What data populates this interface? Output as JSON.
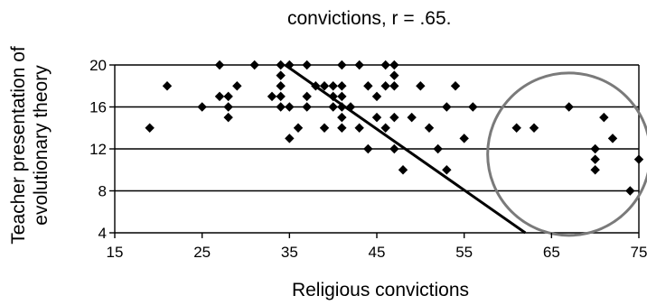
{
  "caption_text": "convictions, r = .65.",
  "chart_data": {
    "type": "scatter",
    "title": "",
    "xlabel": "Religious convictions",
    "ylabel": "Teacher presentation of evolutionary theory",
    "xlim": [
      15,
      75
    ],
    "ylim": [
      4,
      20
    ],
    "x_ticks": [
      "15",
      "25",
      "35",
      "45",
      "55",
      "65",
      "75"
    ],
    "y_ticks": [
      "4",
      "8",
      "12",
      "16",
      "20"
    ],
    "grid": "horizontal",
    "annotations": {
      "trend_line": {
        "x": [
          34.5,
          62
        ],
        "y": [
          20,
          4
        ]
      },
      "circle": {
        "cx": 67,
        "cy": 11.5
      }
    },
    "points": [
      [
        19,
        14
      ],
      [
        21,
        18
      ],
      [
        25,
        16
      ],
      [
        27,
        20
      ],
      [
        27,
        17
      ],
      [
        28,
        17
      ],
      [
        28,
        16
      ],
      [
        28,
        15
      ],
      [
        29,
        18
      ],
      [
        31,
        20
      ],
      [
        33,
        17
      ],
      [
        34,
        20
      ],
      [
        34,
        19
      ],
      [
        34,
        18
      ],
      [
        34,
        17
      ],
      [
        34,
        16
      ],
      [
        35,
        20
      ],
      [
        35,
        16
      ],
      [
        35,
        13
      ],
      [
        36,
        14
      ],
      [
        37,
        20
      ],
      [
        37,
        17
      ],
      [
        37,
        16
      ],
      [
        38,
        18
      ],
      [
        39,
        14
      ],
      [
        39,
        18
      ],
      [
        40,
        18
      ],
      [
        40,
        17
      ],
      [
        40,
        16
      ],
      [
        41,
        20
      ],
      [
        41,
        18
      ],
      [
        41,
        17
      ],
      [
        41,
        16
      ],
      [
        41,
        15
      ],
      [
        41,
        14
      ],
      [
        42,
        16
      ],
      [
        43,
        14
      ],
      [
        43,
        20
      ],
      [
        44,
        18
      ],
      [
        44,
        12
      ],
      [
        45,
        17
      ],
      [
        45,
        15
      ],
      [
        46,
        20
      ],
      [
        46,
        18
      ],
      [
        46,
        14
      ],
      [
        47,
        20
      ],
      [
        47,
        19
      ],
      [
        47,
        18
      ],
      [
        47,
        15
      ],
      [
        47,
        12
      ],
      [
        48,
        10
      ],
      [
        49,
        15
      ],
      [
        50,
        18
      ],
      [
        51,
        14
      ],
      [
        52,
        12
      ],
      [
        53,
        10
      ],
      [
        53,
        16
      ],
      [
        54,
        18
      ],
      [
        55,
        13
      ],
      [
        56,
        16
      ],
      [
        61,
        14
      ],
      [
        63,
        14
      ],
      [
        67,
        16
      ],
      [
        70,
        12
      ],
      [
        70,
        11
      ],
      [
        70,
        10
      ],
      [
        71,
        15
      ],
      [
        72,
        13
      ],
      [
        74,
        8
      ],
      [
        75,
        11
      ]
    ]
  }
}
